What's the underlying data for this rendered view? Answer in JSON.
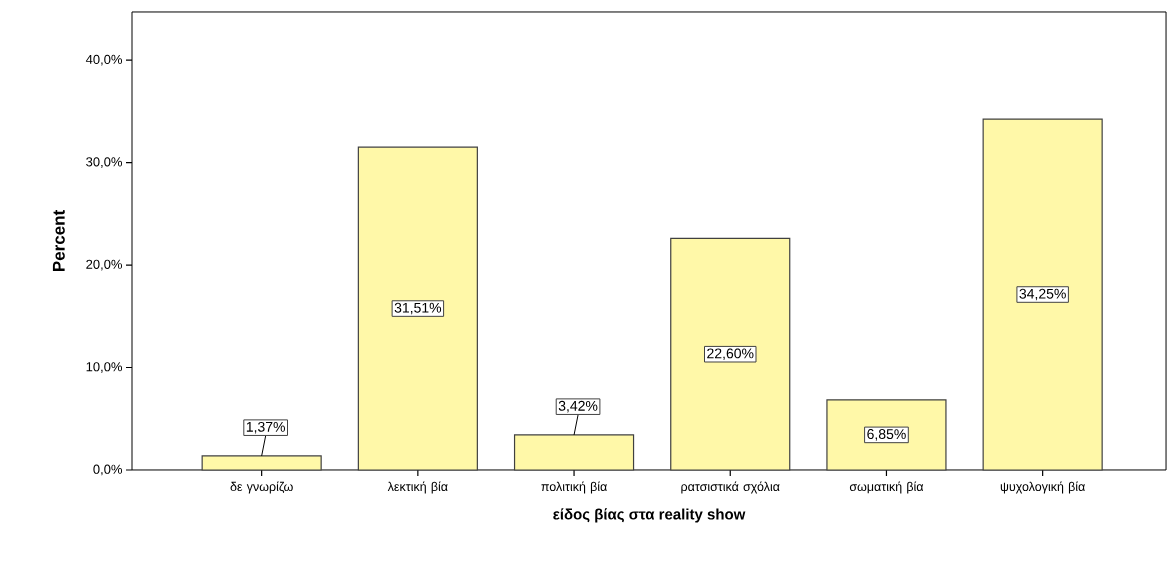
{
  "chart_data": {
    "type": "bar",
    "xlabel": "είδος βίας στα reality show",
    "ylabel": "Percent",
    "categories": [
      "δε γνωρίζω",
      "λεκτική βία",
      "πολιτική βία",
      "ρατσιστικά σχόλια",
      "σωματική βία",
      "ψυχολογική βία"
    ],
    "values": [
      1.37,
      31.51,
      3.42,
      22.6,
      6.85,
      34.25
    ],
    "value_labels": [
      "1,37%",
      "31,51%",
      "3,42%",
      "22,60%",
      "6,85%",
      "34,25%"
    ],
    "color": "#fff8a8",
    "ylim": [
      0,
      44.7
    ],
    "yticks": [
      {
        "value": 0,
        "label": "0,0%"
      },
      {
        "value": 10,
        "label": "10,0%"
      },
      {
        "value": 20,
        "label": "20,0%"
      },
      {
        "value": 30,
        "label": "30,0%"
      },
      {
        "value": 40,
        "label": "40,0%"
      }
    ]
  }
}
